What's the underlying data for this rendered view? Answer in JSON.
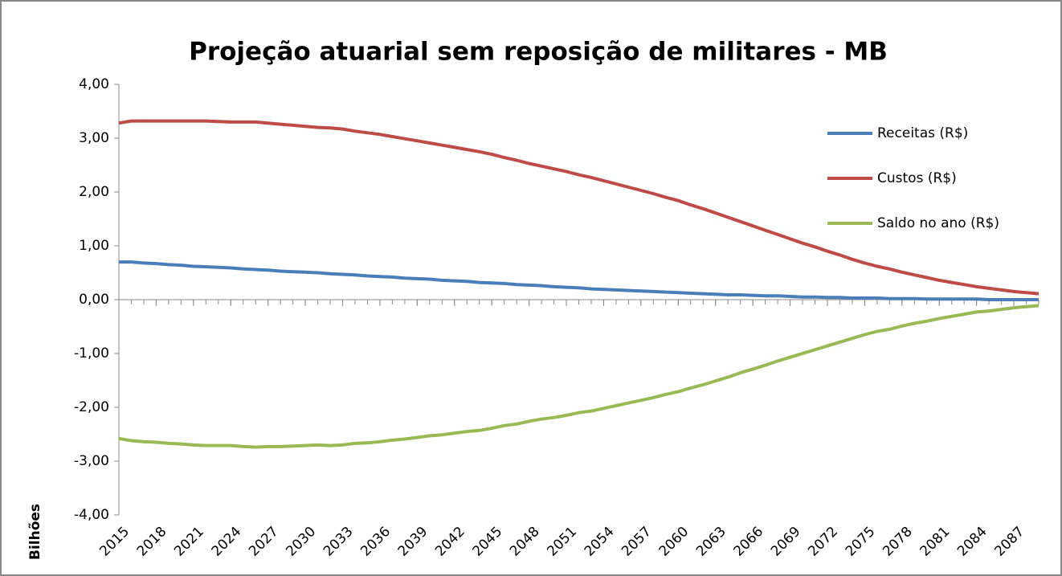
{
  "chart_data": {
    "type": "line",
    "title": "Projeção atuarial sem reposição de militares - MB",
    "y_label": "Bilhões",
    "x": [
      2015,
      2016,
      2017,
      2018,
      2019,
      2020,
      2021,
      2022,
      2023,
      2024,
      2025,
      2026,
      2027,
      2028,
      2029,
      2030,
      2031,
      2032,
      2033,
      2034,
      2035,
      2036,
      2037,
      2038,
      2039,
      2040,
      2041,
      2042,
      2043,
      2044,
      2045,
      2046,
      2047,
      2048,
      2049,
      2050,
      2051,
      2052,
      2053,
      2054,
      2055,
      2056,
      2057,
      2058,
      2059,
      2060,
      2061,
      2062,
      2063,
      2064,
      2065,
      2066,
      2067,
      2068,
      2069,
      2070,
      2071,
      2072,
      2073,
      2074,
      2075,
      2076,
      2077,
      2078,
      2079,
      2080,
      2081,
      2082,
      2083,
      2084,
      2085,
      2086,
      2087,
      2088,
      2089
    ],
    "xlim": [
      2015,
      2089
    ],
    "xticks": [
      2015,
      2018,
      2021,
      2024,
      2027,
      2030,
      2033,
      2036,
      2039,
      2042,
      2045,
      2048,
      2051,
      2054,
      2057,
      2060,
      2063,
      2066,
      2069,
      2072,
      2075,
      2078,
      2081,
      2084,
      2087
    ],
    "ylim": [
      -4,
      4
    ],
    "yticks": [
      {
        "value": 4,
        "label": "4,00"
      },
      {
        "value": 3,
        "label": "3,00"
      },
      {
        "value": 2,
        "label": "2,00"
      },
      {
        "value": 1,
        "label": "1,00"
      },
      {
        "value": 0,
        "label": "0,00"
      },
      {
        "value": -1,
        "label": "-1,00"
      },
      {
        "value": -2,
        "label": "-2,00"
      },
      {
        "value": -3,
        "label": "-3,00"
      },
      {
        "value": -4,
        "label": "-4,00"
      }
    ],
    "grid": false,
    "legend": "right",
    "series": [
      {
        "name": "Receitas (R$)",
        "color": "#4a7ebb",
        "values": [
          0.7,
          0.7,
          0.68,
          0.67,
          0.65,
          0.64,
          0.62,
          0.61,
          0.6,
          0.59,
          0.57,
          0.56,
          0.55,
          0.53,
          0.52,
          0.51,
          0.5,
          0.48,
          0.47,
          0.46,
          0.44,
          0.43,
          0.42,
          0.4,
          0.39,
          0.38,
          0.36,
          0.35,
          0.34,
          0.32,
          0.31,
          0.3,
          0.28,
          0.27,
          0.26,
          0.24,
          0.23,
          0.22,
          0.2,
          0.19,
          0.18,
          0.17,
          0.16,
          0.15,
          0.14,
          0.13,
          0.12,
          0.11,
          0.1,
          0.09,
          0.09,
          0.08,
          0.07,
          0.07,
          0.06,
          0.05,
          0.05,
          0.04,
          0.04,
          0.03,
          0.03,
          0.03,
          0.02,
          0.02,
          0.02,
          0.01,
          0.01,
          0.01,
          0.01,
          0.01,
          0,
          0,
          0,
          0,
          0
        ]
      },
      {
        "name": "Custos (R$)",
        "color": "#be4b48",
        "values": [
          3.28,
          3.32,
          3.32,
          3.32,
          3.32,
          3.32,
          3.32,
          3.32,
          3.31,
          3.3,
          3.3,
          3.3,
          3.28,
          3.26,
          3.24,
          3.22,
          3.2,
          3.19,
          3.17,
          3.13,
          3.1,
          3.07,
          3.03,
          2.99,
          2.95,
          2.91,
          2.87,
          2.83,
          2.79,
          2.75,
          2.7,
          2.64,
          2.59,
          2.53,
          2.48,
          2.43,
          2.38,
          2.32,
          2.27,
          2.21,
          2.15,
          2.09,
          2.03,
          1.97,
          1.9,
          1.84,
          1.76,
          1.69,
          1.61,
          1.53,
          1.45,
          1.37,
          1.29,
          1.21,
          1.13,
          1.05,
          0.98,
          0.9,
          0.83,
          0.75,
          0.68,
          0.62,
          0.57,
          0.51,
          0.46,
          0.41,
          0.36,
          0.32,
          0.28,
          0.24,
          0.21,
          0.18,
          0.15,
          0.13,
          0.11
        ]
      },
      {
        "name": "Saldo no ano (R$)",
        "color": "#98b954",
        "values": [
          -2.58,
          -2.62,
          -2.64,
          -2.65,
          -2.67,
          -2.68,
          -2.7,
          -2.71,
          -2.71,
          -2.71,
          -2.73,
          -2.74,
          -2.73,
          -2.73,
          -2.72,
          -2.71,
          -2.7,
          -2.71,
          -2.7,
          -2.67,
          -2.66,
          -2.64,
          -2.61,
          -2.59,
          -2.56,
          -2.53,
          -2.51,
          -2.48,
          -2.45,
          -2.43,
          -2.39,
          -2.34,
          -2.31,
          -2.26,
          -2.22,
          -2.19,
          -2.15,
          -2.1,
          -2.07,
          -2.02,
          -1.97,
          -1.92,
          -1.87,
          -1.82,
          -1.76,
          -1.71,
          -1.64,
          -1.58,
          -1.51,
          -1.44,
          -1.36,
          -1.29,
          -1.22,
          -1.14,
          -1.07,
          -1.0,
          -0.93,
          -0.86,
          -0.79,
          -0.72,
          -0.65,
          -0.59,
          -0.55,
          -0.49,
          -0.44,
          -0.4,
          -0.35,
          -0.31,
          -0.27,
          -0.23,
          -0.21,
          -0.18,
          -0.15,
          -0.13,
          -0.11
        ]
      }
    ]
  }
}
